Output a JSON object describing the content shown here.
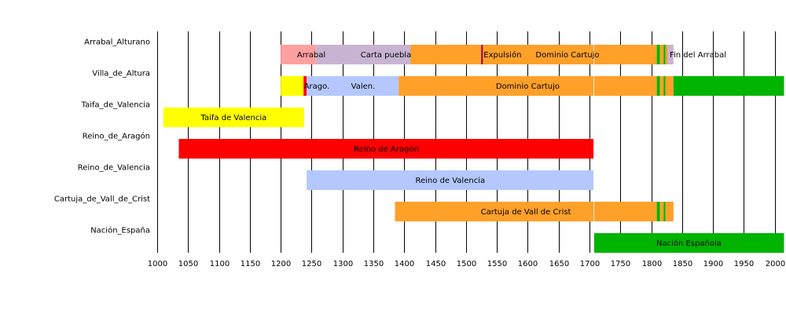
{
  "chart_data": {
    "type": "bar",
    "orientation": "horizontal-timeline",
    "title": "",
    "xlabel": "",
    "ylabel": "",
    "xlim": [
      1000,
      2015
    ],
    "x_ticks": [
      1000,
      1050,
      1100,
      1150,
      1200,
      1250,
      1300,
      1350,
      1400,
      1450,
      1500,
      1550,
      1600,
      1650,
      1700,
      1750,
      1800,
      1850,
      1900,
      1950,
      2000
    ],
    "grid": "vertical major lines",
    "rows": [
      {
        "label": "Arrabal_Alturano",
        "segments": [
          {
            "start": 1200,
            "end": 1257,
            "color": "#ffa0a0",
            "label": "Arrabal"
          },
          {
            "start": 1257,
            "end": 1410,
            "color": "#c8b4d2",
            "label": "Carta puebla"
          },
          {
            "start": 1410,
            "end": 1809,
            "color": "#ffa028",
            "label": "Dominio Cartujo"
          },
          {
            "start": 1809,
            "end": 1814,
            "color": "#00b400",
            "label": ""
          },
          {
            "start": 1814,
            "end": 1820,
            "color": "#ffa028",
            "label": ""
          },
          {
            "start": 1820,
            "end": 1823,
            "color": "#00b400",
            "label": ""
          },
          {
            "start": 1823,
            "end": 1826,
            "color": "#ffa028",
            "label": ""
          },
          {
            "start": 1826,
            "end": 1836,
            "color": "#c8b4d2",
            "label": "Fin del Arrabal"
          }
        ],
        "markers": [
          {
            "year": 1526,
            "color": "#960060",
            "label": "Expulsión"
          }
        ]
      },
      {
        "label": "Villa_de_Altura",
        "segments": [
          {
            "start": 1200,
            "end": 1237,
            "color": "#ffff00",
            "label": ""
          },
          {
            "start": 1237,
            "end": 1242,
            "color": "#ff0000",
            "label": "Arago."
          },
          {
            "start": 1242,
            "end": 1391,
            "color": "#b4c8ff",
            "label": "Valen."
          },
          {
            "start": 1391,
            "end": 1809,
            "color": "#ffa028",
            "label": "Dominio Cartujo"
          },
          {
            "start": 1809,
            "end": 1814,
            "color": "#00b400",
            "label": ""
          },
          {
            "start": 1814,
            "end": 1820,
            "color": "#ffa028",
            "label": ""
          },
          {
            "start": 1820,
            "end": 1823,
            "color": "#00b400",
            "label": ""
          },
          {
            "start": 1823,
            "end": 1836,
            "color": "#ffa028",
            "label": ""
          },
          {
            "start": 1836,
            "end": 2015,
            "color": "#00b400",
            "label": ""
          }
        ],
        "markers": []
      },
      {
        "label": "Taifa_de_Valencia",
        "segments": [
          {
            "start": 1010,
            "end": 1238,
            "color": "#ffff00",
            "label": "Taifa de Valencia"
          }
        ],
        "markers": []
      },
      {
        "label": "Reino_de_Aragón",
        "segments": [
          {
            "start": 1035,
            "end": 1707,
            "color": "#ff0000",
            "label": "Reino de Aragón"
          }
        ],
        "markers": []
      },
      {
        "label": "Reino_de_Valencia",
        "segments": [
          {
            "start": 1242,
            "end": 1707,
            "color": "#b4c8ff",
            "label": "Reino de Valencia"
          }
        ],
        "markers": []
      },
      {
        "label": "Cartuja_de_Vall_de_Crist",
        "segments": [
          {
            "start": 1385,
            "end": 1809,
            "color": "#ffa028",
            "label": "Cartuja de Vall de Crist"
          },
          {
            "start": 1809,
            "end": 1814,
            "color": "#00b400",
            "label": ""
          },
          {
            "start": 1814,
            "end": 1820,
            "color": "#ffa028",
            "label": ""
          },
          {
            "start": 1820,
            "end": 1823,
            "color": "#00b400",
            "label": ""
          },
          {
            "start": 1823,
            "end": 1836,
            "color": "#ffa028",
            "label": ""
          }
        ],
        "markers": []
      },
      {
        "label": "Nación_España",
        "segments": [
          {
            "start": 1707,
            "end": 2015,
            "color": "#00b400",
            "label": "Nación Española"
          }
        ],
        "markers": []
      }
    ],
    "divider_years": [
      1707
    ]
  }
}
